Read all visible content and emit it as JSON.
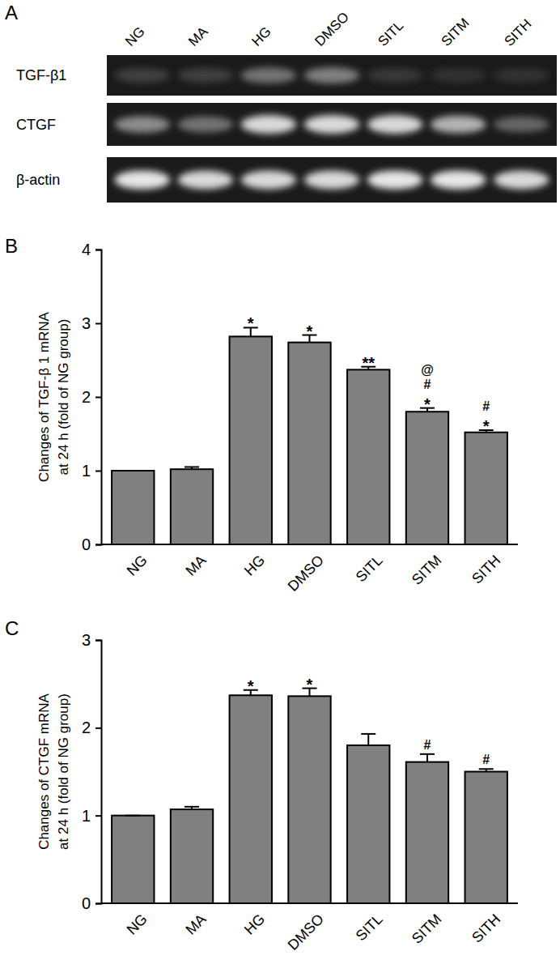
{
  "gel": {
    "panel_label": "A",
    "lanes": [
      "NG",
      "MA",
      "HG",
      "DMSO",
      "SITL",
      "SITM",
      "SITH"
    ],
    "bands": [
      {
        "name": "TGF-β1",
        "intensity": [
          0.25,
          0.25,
          0.45,
          0.5,
          0.22,
          0.2,
          0.2
        ]
      },
      {
        "name": "CTGF",
        "intensity": [
          0.55,
          0.45,
          0.85,
          0.85,
          0.85,
          0.7,
          0.4
        ]
      },
      {
        "name": "β-actin",
        "intensity": [
          0.9,
          0.85,
          0.85,
          0.85,
          0.9,
          0.9,
          0.85
        ]
      }
    ]
  },
  "chart_data": [
    {
      "type": "bar",
      "panel_label": "B",
      "ylabel": [
        "Changes of TGF-β 1 mRNA",
        "at 24 h (fold of NG group)"
      ],
      "categories": [
        "NG",
        "MA",
        "HG",
        "DMSO",
        "SITL",
        "SITM",
        "SITH"
      ],
      "values": [
        1.0,
        1.02,
        2.82,
        2.74,
        2.37,
        1.8,
        1.52
      ],
      "errors": [
        0,
        0.03,
        0.12,
        0.1,
        0.04,
        0.05,
        0.03
      ],
      "color": "#808080",
      "ylim": [
        0,
        4
      ],
      "yticks": [
        0,
        1,
        2,
        3,
        4
      ],
      "annotations": [
        {
          "category": "HG",
          "text": [
            "*"
          ]
        },
        {
          "category": "DMSO",
          "text": [
            "*"
          ]
        },
        {
          "category": "SITL",
          "text": [
            "**"
          ]
        },
        {
          "category": "SITM",
          "text": [
            "@",
            "#",
            "*"
          ]
        },
        {
          "category": "SITH",
          "text": [
            "#",
            "*"
          ]
        }
      ]
    },
    {
      "type": "bar",
      "panel_label": "C",
      "ylabel": [
        "Changes of CTGF mRNA",
        "at 24 h (fold of NG group)"
      ],
      "categories": [
        "NG",
        "MA",
        "HG",
        "DMSO",
        "SITL",
        "SITM",
        "SITH"
      ],
      "values": [
        1.0,
        1.07,
        2.37,
        2.36,
        1.8,
        1.61,
        1.5
      ],
      "errors": [
        0,
        0.03,
        0.06,
        0.09,
        0.13,
        0.09,
        0.03
      ],
      "color": "#808080",
      "ylim": [
        0,
        3
      ],
      "yticks": [
        0,
        1,
        2,
        3
      ],
      "annotations": [
        {
          "category": "HG",
          "text": [
            "*"
          ]
        },
        {
          "category": "DMSO",
          "text": [
            "*"
          ]
        },
        {
          "category": "SITM",
          "text": [
            "#"
          ]
        },
        {
          "category": "SITH",
          "text": [
            "#"
          ]
        }
      ]
    }
  ]
}
